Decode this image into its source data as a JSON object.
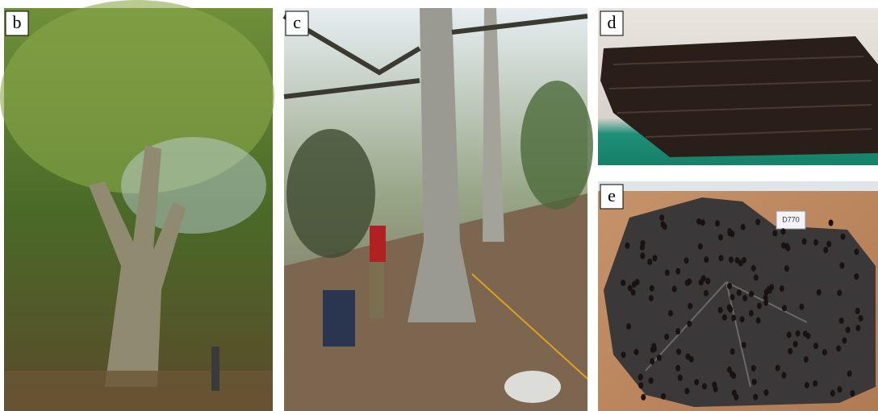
{
  "panels": [
    {
      "label": "b"
    },
    {
      "label": "c"
    },
    {
      "label": "d"
    },
    {
      "label": "e"
    }
  ],
  "sticker": "D770"
}
